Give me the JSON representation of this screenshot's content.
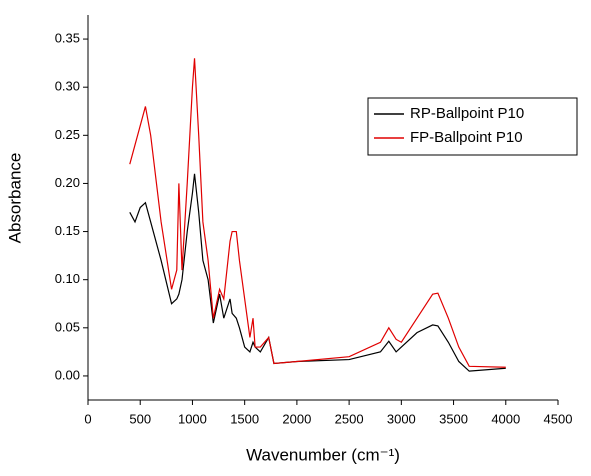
{
  "chart_data": {
    "type": "line",
    "x_label": "Wavenumber (cm⁻¹)",
    "y_label": "Absorbance",
    "xlim": [
      0,
      4500
    ],
    "ylim": [
      -0.025,
      0.375
    ],
    "xticks": [
      0,
      500,
      1000,
      1500,
      2000,
      2500,
      3000,
      3500,
      4000,
      4500
    ],
    "yticks": [
      {
        "value": 0,
        "label": "0.00"
      },
      0.05,
      {
        "value": 0.1,
        "label": "0.10"
      },
      0.15,
      {
        "value": 0.2,
        "label": "0.20"
      },
      0.25,
      {
        "value": 0.3,
        "label": "0.30"
      },
      0.35
    ],
    "legend": "upper right",
    "x": [
      400,
      450,
      500,
      550,
      600,
      700,
      800,
      850,
      870,
      900,
      950,
      1000,
      1020,
      1060,
      1100,
      1150,
      1200,
      1260,
      1300,
      1360,
      1380,
      1420,
      1450,
      1500,
      1550,
      1580,
      1600,
      1650,
      1730,
      1780,
      2000,
      2500,
      2800,
      2880,
      2950,
      3000,
      3150,
      3300,
      3350,
      3450,
      3550,
      3650,
      4000
    ],
    "series": [
      {
        "name": "RP-Ballpoint P10",
        "color": "#000000",
        "values": [
          0.17,
          0.16,
          0.175,
          0.18,
          0.16,
          0.12,
          0.075,
          0.08,
          0.085,
          0.1,
          0.15,
          0.19,
          0.21,
          0.17,
          0.12,
          0.1,
          0.055,
          0.085,
          0.06,
          0.08,
          0.065,
          0.06,
          0.05,
          0.03,
          0.025,
          0.035,
          0.03,
          0.025,
          0.04,
          0.013,
          0.015,
          0.017,
          0.025,
          0.036,
          0.025,
          0.03,
          0.045,
          0.053,
          0.052,
          0.035,
          0.015,
          0.005,
          0.008
        ]
      },
      {
        "name": "FP-Ballpoint P10",
        "color": "#e00000",
        "values": [
          0.22,
          0.24,
          0.26,
          0.28,
          0.25,
          0.16,
          0.09,
          0.11,
          0.2,
          0.11,
          0.2,
          0.3,
          0.33,
          0.25,
          0.16,
          0.12,
          0.06,
          0.09,
          0.08,
          0.14,
          0.15,
          0.15,
          0.12,
          0.08,
          0.04,
          0.06,
          0.03,
          0.03,
          0.04,
          0.013,
          0.015,
          0.02,
          0.035,
          0.05,
          0.038,
          0.035,
          0.06,
          0.085,
          0.086,
          0.06,
          0.03,
          0.01,
          0.009
        ]
      }
    ]
  }
}
